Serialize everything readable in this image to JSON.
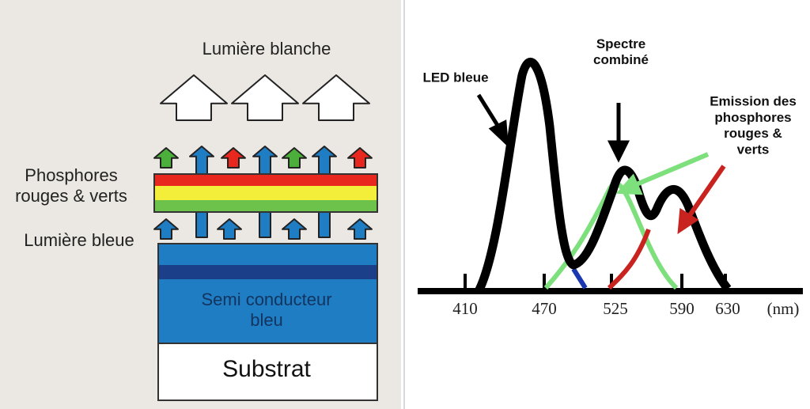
{
  "diagram": {
    "title": "Lumière blanche",
    "layers": {
      "phosphors": "Phosphores\nrouges & verts",
      "blue_light": "Lumière bleue",
      "semiconductor": "Semi conducteur\nbleu",
      "substrate": "Substrat"
    }
  },
  "spectrum": {
    "annotations": {
      "led": "LED bleue",
      "combined": "Spectre\ncombiné",
      "phosphors": "Emission des\nphosphores\nrouges &\nverts"
    },
    "x_ticks": [
      "410",
      "470",
      "525",
      "590",
      "630"
    ],
    "x_unit": "(nm)"
  }
}
